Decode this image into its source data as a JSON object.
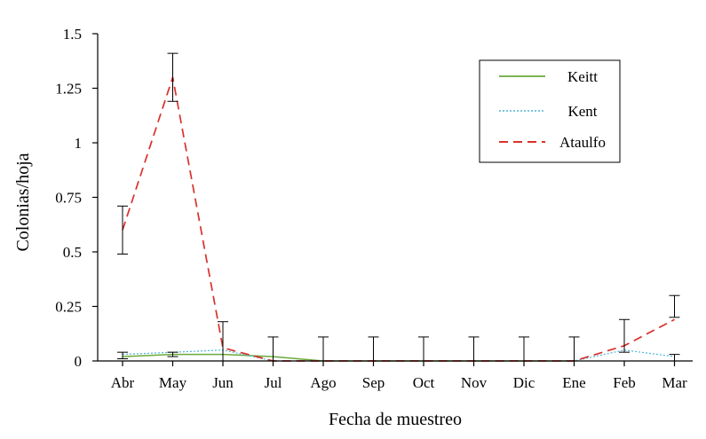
{
  "chart_data": {
    "type": "line",
    "title": "",
    "xlabel": "Fecha de muestreo",
    "ylabel": "Colonias/hoja",
    "categories": [
      "Abr",
      "May",
      "Jun",
      "Jul",
      "Ago",
      "Sep",
      "Oct",
      "Nov",
      "Dic",
      "Ene",
      "Feb",
      "Mar"
    ],
    "ylim": [
      0,
      1.5
    ],
    "yticks": [
      "0",
      "0.25",
      "0.5",
      "0.75",
      "1",
      "1.25",
      "1.5"
    ],
    "grid": false,
    "legend_position": "top-right",
    "series": [
      {
        "name": "Keitt",
        "color": "#6aaa3a",
        "dash": "solid",
        "values": [
          0.02,
          0.03,
          0.03,
          0.02,
          0,
          0,
          0,
          0,
          0,
          0,
          null,
          null
        ]
      },
      {
        "name": "Kent",
        "color": "#4fb3d9",
        "dash": "dotted",
        "values": [
          0.03,
          0.04,
          0.05,
          0,
          0,
          0,
          0,
          0,
          0,
          0,
          0.05,
          0.02
        ]
      },
      {
        "name": "Ataulfo",
        "color": "#d9312b",
        "dash": "dashed",
        "values": [
          0.6,
          1.3,
          0.06,
          0,
          0,
          0,
          0,
          0,
          0,
          0,
          0.07,
          0.19
        ]
      }
    ],
    "error_bars": [
      {
        "low": 0.49,
        "high": 0.71
      },
      {
        "low": 1.19,
        "high": 1.41
      },
      {
        "low": 0.0,
        "high": 0.18
      },
      {
        "low": 0.0,
        "high": 0.11
      },
      {
        "low": 0.0,
        "high": 0.11
      },
      {
        "low": 0.0,
        "high": 0.11
      },
      {
        "low": 0.0,
        "high": 0.11
      },
      {
        "low": 0.0,
        "high": 0.11
      },
      {
        "low": 0.0,
        "high": 0.11
      },
      {
        "low": 0.0,
        "high": 0.11
      },
      {
        "low": 0.04,
        "high": 0.19
      },
      {
        "low": 0.2,
        "high": 0.3
      },
      {
        "low": 0.01,
        "high": 0.04
      },
      {
        "low": 0.02,
        "high": 0.04
      },
      {
        "low": 0.0,
        "high": 0.03
      }
    ],
    "error_bar_positions": [
      0,
      1,
      2,
      3,
      4,
      5,
      6,
      7,
      8,
      9,
      10,
      11,
      0,
      1,
      11
    ]
  }
}
